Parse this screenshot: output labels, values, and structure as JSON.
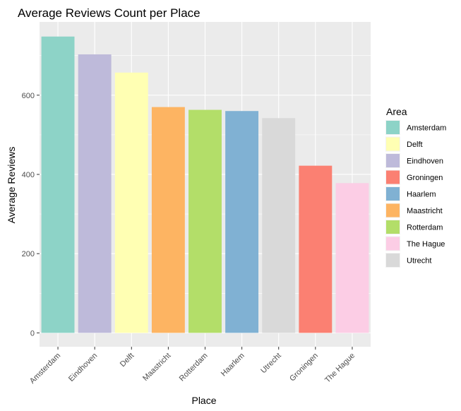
{
  "chart_data": {
    "type": "bar",
    "title": "Average Reviews Count per Place",
    "xlabel": "Place",
    "ylabel": "Average Reviews",
    "categories": [
      "Amsterdam",
      "Eindhoven",
      "Delft",
      "Maastricht",
      "Rotterdam",
      "Haarlem",
      "Utrecht",
      "Groningen",
      "The Hague"
    ],
    "values": [
      748,
      703,
      657,
      570,
      563,
      560,
      542,
      422,
      378
    ],
    "fill_area": [
      "Amsterdam",
      "Eindhoven",
      "Delft",
      "Maastricht",
      "Rotterdam",
      "Haarlem",
      "Utrecht",
      "Groningen",
      "The Hague"
    ],
    "ylim": [
      -35,
      785
    ],
    "y_ticks": [
      0,
      200,
      400,
      600
    ],
    "grid": true,
    "legend": {
      "title": "Area",
      "placement": "right",
      "entries": [
        {
          "label": "Amsterdam",
          "color": "#8dd3c7"
        },
        {
          "label": "Delft",
          "color": "#ffffb3"
        },
        {
          "label": "Eindhoven",
          "color": "#bebada"
        },
        {
          "label": "Groningen",
          "color": "#fb8072"
        },
        {
          "label": "Haarlem",
          "color": "#80b1d3"
        },
        {
          "label": "Maastricht",
          "color": "#fdb462"
        },
        {
          "label": "Rotterdam",
          "color": "#b3de69"
        },
        {
          "label": "The Hague",
          "color": "#fccde5"
        },
        {
          "label": "Utrecht",
          "color": "#d9d9d9"
        }
      ]
    },
    "colors": {
      "panel_background": "#ebebeb",
      "grid_line": "#ffffff"
    }
  }
}
